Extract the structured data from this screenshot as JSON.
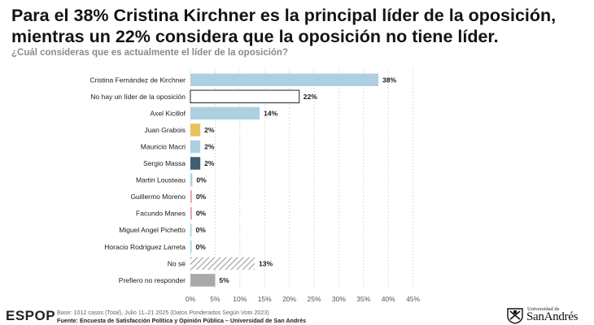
{
  "header": {
    "title": "Para el 38% Cristina Kirchner es la principal líder de la oposición, mientras un 22% considera que la oposición no tiene líder.",
    "subtitle": "¿Cuál consideras que es actualmente el líder de la oposición?"
  },
  "chart_data": {
    "type": "bar",
    "orientation": "horizontal",
    "categories": [
      "Cristina Fernández de Kirchner",
      "No hay un líder de la oposición",
      "Axel Kicillof",
      "Juan Grabois",
      "Mauricio Macri",
      "Sergio Massa",
      "Martin Lousteau",
      "Guillermo Moreno",
      "Facundo Manes",
      "Miguel Angel Pichetto",
      "Horacio Rodriguez Larreta",
      "No sé",
      "Prefiero no responder"
    ],
    "values": [
      38,
      22,
      14,
      2,
      2,
      2,
      0.4,
      0.3,
      0.3,
      0.1,
      0.1,
      13,
      5
    ],
    "value_labels": [
      "38%",
      "22%",
      "14%",
      "2%",
      "2%",
      "2%",
      "0%",
      "0%",
      "0%",
      "0%",
      "0%",
      "13%",
      "5%"
    ],
    "colors": [
      "#add0e0",
      "#ffffff",
      "#add0e0",
      "#e8c25e",
      "#add0e0",
      "#3e5f72",
      "#add0e0",
      "#e6a2a2",
      "#e6a2a2",
      "#add0e0",
      "#add0e0",
      "hatch",
      "#a9a9a9"
    ],
    "outlined": [
      false,
      true,
      false,
      false,
      false,
      false,
      false,
      false,
      false,
      false,
      false,
      false,
      false
    ],
    "xlim": [
      0,
      45
    ],
    "xticks": [
      0,
      5,
      10,
      15,
      20,
      25,
      30,
      35,
      40,
      45
    ],
    "xtick_labels": [
      "0%",
      "5%",
      "10%",
      "15%",
      "20%",
      "25%",
      "30%",
      "35%",
      "40%",
      "45%"
    ],
    "grid": "vertical dashed"
  },
  "footer": {
    "logo": "ESPOP",
    "base": "Base: 1012 casos (Total), Julio 11–21 2025 (Datos Ponderados Según Voto 2023)",
    "source": "Fuente: Encuesta de Satisfacción Política y Opinión Pública – Universidad de San Andrés",
    "university_small": "Universidad de",
    "university_big": "SanAndrés"
  }
}
